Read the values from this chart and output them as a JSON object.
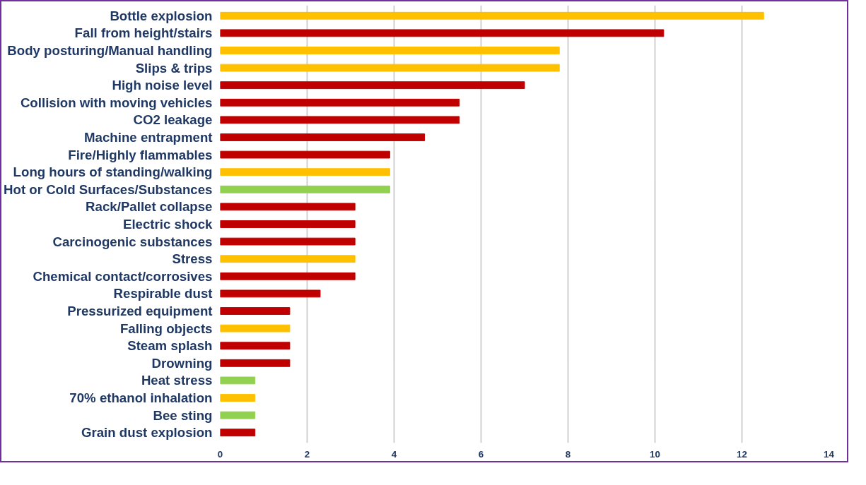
{
  "chart_data": {
    "type": "bar",
    "orientation": "horizontal",
    "categories": [
      "Bottle explosion",
      "Fall from height/stairs",
      "Body posturing/Manual handling",
      "Slips & trips",
      "High noise level",
      "Collision with moving vehicles",
      "CO2 leakage",
      "Machine entrapment",
      "Fire/Highly flammables",
      "Long hours of standing/walking",
      "Hot or Cold Surfaces/Substances",
      "Rack/Pallet collapse",
      "Electric shock",
      "Carcinogenic substances",
      "Stress",
      "Chemical contact/corrosives",
      "Respirable dust",
      "Pressurized equipment",
      "Falling objects",
      "Steam splash",
      "Drowning",
      "Heat stress",
      "70% ethanol inhalation",
      "Bee sting",
      "Grain dust explosion"
    ],
    "values": [
      12.5,
      10.2,
      7.8,
      7.8,
      7.0,
      5.5,
      5.5,
      4.7,
      3.9,
      3.9,
      3.9,
      3.1,
      3.1,
      3.1,
      3.1,
      3.1,
      2.3,
      1.6,
      1.6,
      1.6,
      1.6,
      0.8,
      0.8,
      0.8,
      0.8
    ],
    "colors": [
      "#ffc000",
      "#c00000",
      "#ffc000",
      "#ffc000",
      "#c00000",
      "#c00000",
      "#c00000",
      "#c00000",
      "#c00000",
      "#ffc000",
      "#92d050",
      "#c00000",
      "#c00000",
      "#c00000",
      "#ffc000",
      "#c00000",
      "#c00000",
      "#c00000",
      "#ffc000",
      "#c00000",
      "#c00000",
      "#92d050",
      "#ffc000",
      "#92d050",
      "#c00000"
    ],
    "xlim": [
      0,
      14
    ],
    "xticks": [
      0,
      2,
      4,
      6,
      8,
      10,
      12,
      14
    ],
    "grid": "x"
  }
}
